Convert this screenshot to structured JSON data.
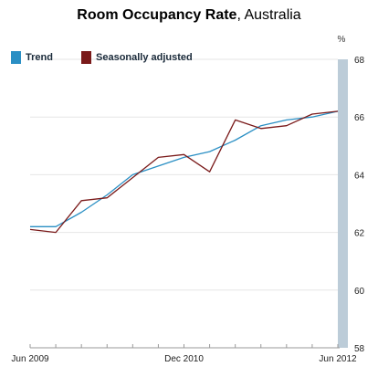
{
  "chart_data": {
    "type": "line",
    "title": "Room Occupancy Rate",
    "subtitle": "Australia",
    "unit_label": "%",
    "xtick_labels": [
      "Jun 2009",
      "Dec 2010",
      "Jun 2012"
    ],
    "xtick_positions": [
      0,
      6,
      12
    ],
    "x_count": 13,
    "yticks": [
      58,
      60,
      62,
      64,
      66,
      68
    ],
    "ylim": [
      58,
      68
    ],
    "grid": true,
    "legend_position": "top-left",
    "series": [
      {
        "name": "Trend",
        "color": "#2a8fc4",
        "values": [
          62.2,
          62.2,
          62.7,
          63.3,
          64.0,
          64.3,
          64.6,
          64.8,
          65.2,
          65.7,
          65.9,
          66.0,
          66.2
        ]
      },
      {
        "name": "Seasonally adjusted",
        "color": "#7a1a1a",
        "values": [
          62.1,
          62.0,
          63.1,
          63.2,
          63.9,
          64.6,
          64.7,
          64.1,
          65.9,
          65.6,
          65.7,
          66.1,
          66.2
        ]
      }
    ]
  },
  "colors": {
    "axis_bar": "#bcccd8",
    "grid": "#e6e6e6"
  }
}
